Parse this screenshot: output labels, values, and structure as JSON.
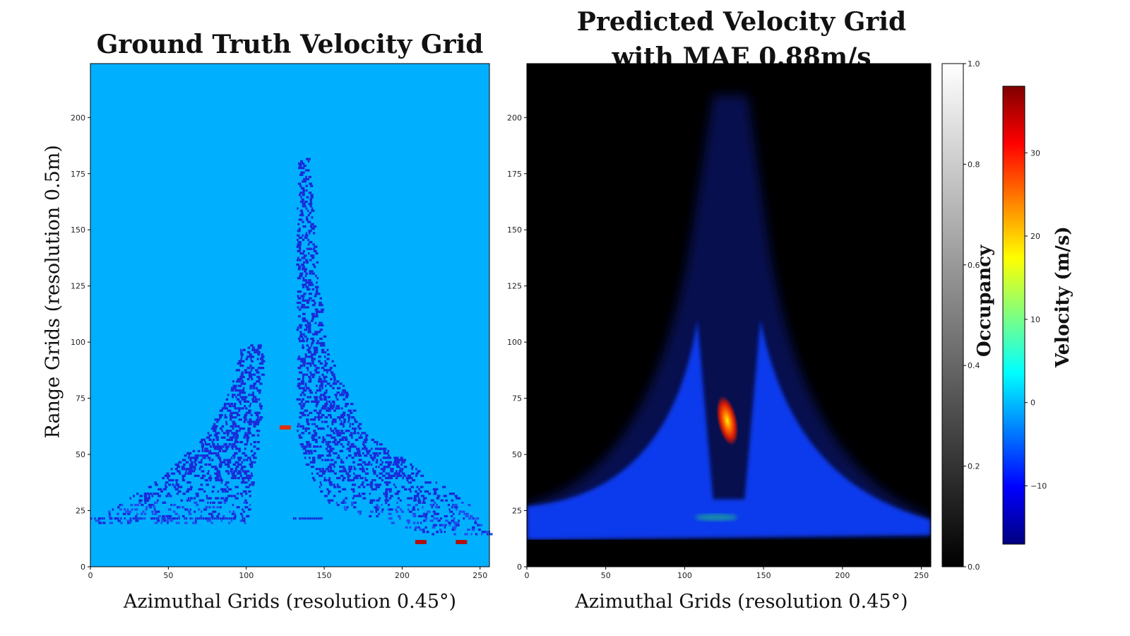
{
  "chart_data": [
    {
      "type": "heatmap",
      "title": "Ground Truth Velocity Grid",
      "xlabel": "Azimuthal Grids (resolution 0.45°)",
      "ylabel": "Range Grids (resolution 0.5m)",
      "xlim": [
        0,
        256
      ],
      "ylim": [
        0,
        224
      ],
      "xticks": [
        0,
        50,
        100,
        150,
        200,
        250
      ],
      "yticks": [
        0,
        25,
        50,
        75,
        100,
        125,
        150,
        175,
        200
      ],
      "background_velocity": 0,
      "left_cluster": [
        {
          "range": 20,
          "azimuth": [
            0,
            100
          ]
        },
        {
          "range": 40,
          "azimuth": [
            45,
            105
          ]
        },
        {
          "range": 60,
          "azimuth": [
            75,
            108
          ]
        },
        {
          "range": 80,
          "azimuth": [
            90,
            110
          ]
        },
        {
          "range": 100,
          "azimuth": [
            97,
            110
          ]
        }
      ],
      "right_cluster": [
        {
          "range": 15,
          "azimuth": [
            210,
            256
          ]
        },
        {
          "range": 30,
          "azimuth": [
            145,
            240
          ]
        },
        {
          "range": 60,
          "azimuth": [
            132,
            175
          ]
        },
        {
          "range": 100,
          "azimuth": [
            132,
            150
          ]
        },
        {
          "range": 150,
          "azimuth": [
            132,
            143
          ]
        },
        {
          "range": 183,
          "azimuth": [
            133,
            140
          ]
        }
      ],
      "moving_targets": [
        {
          "azimuth": 125,
          "range": 62,
          "velocity": 30
        },
        {
          "azimuth": 212,
          "range": 11,
          "velocity": 35
        },
        {
          "azimuth": 238,
          "range": 11,
          "velocity": 35
        }
      ]
    },
    {
      "type": "heatmap",
      "title_lines": [
        "Predicted Velocity Grid",
        "with MAE 0.88m/s"
      ],
      "xlabel": "Azimuthal Grids (resolution 0.45°)",
      "xlim": [
        0,
        256
      ],
      "ylim": [
        0,
        224
      ],
      "xticks": [
        0,
        50,
        100,
        150,
        200,
        250
      ],
      "yticks": [
        0,
        25,
        50,
        75,
        100,
        125,
        150,
        175,
        200
      ],
      "mae_m_per_s": 0.88,
      "moving_targets": [
        {
          "azimuth": 127,
          "range": 65,
          "velocity": 30
        }
      ]
    },
    {
      "type": "colorbar",
      "label": "Occupancy",
      "range": [
        0.0,
        1.0
      ],
      "ticks": [
        "0.0",
        "0.2",
        "0.4",
        "0.6",
        "0.8",
        "1.0"
      ],
      "colormap": [
        "#000000",
        "#ffffff"
      ]
    },
    {
      "type": "colorbar",
      "label": "Velocity (m/s)",
      "range": [
        -17,
        38
      ],
      "ticks": [
        "−10",
        "0",
        "10",
        "20",
        "30"
      ],
      "tick_values": [
        -10,
        0,
        10,
        20,
        30
      ],
      "colormap": [
        "#000080",
        "#0000ff",
        "#0080ff",
        "#00ffff",
        "#80ff80",
        "#ffff00",
        "#ff8000",
        "#ff0000",
        "#800000"
      ]
    }
  ],
  "colors": {
    "gt_background": "#00b0ff",
    "gt_points": "#1a2ad8",
    "pred_background": "#000000",
    "pred_blue": "#1040ff",
    "target_red": "#e03010"
  }
}
